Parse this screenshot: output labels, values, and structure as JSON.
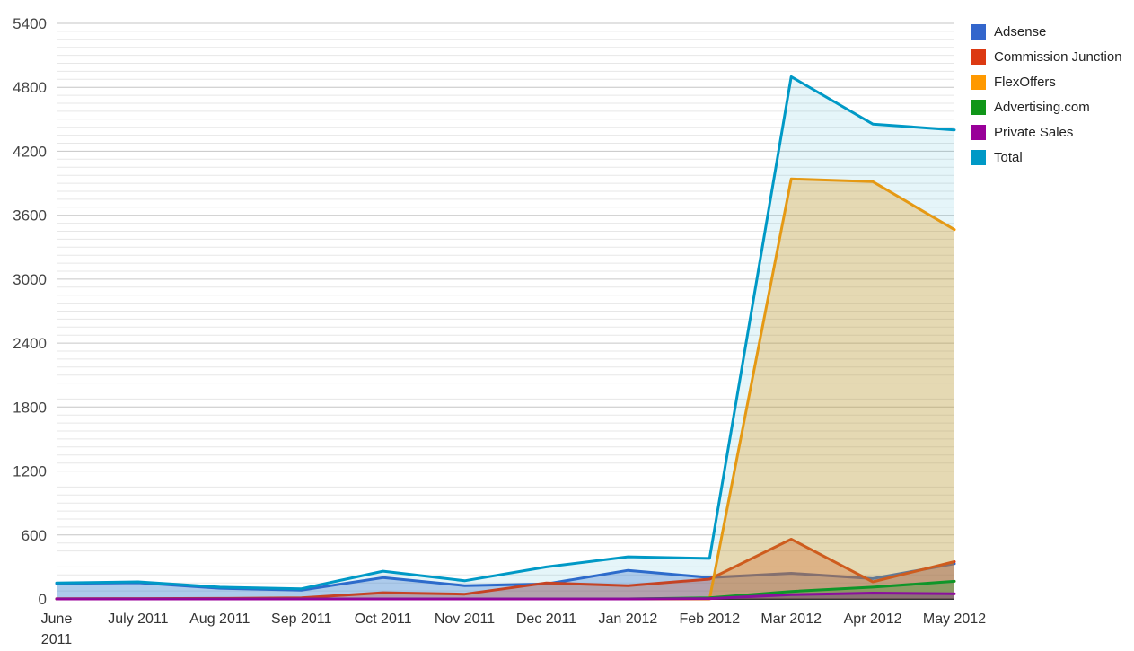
{
  "chart_data": {
    "type": "area",
    "title": "",
    "xlabel": "",
    "ylabel": "",
    "categories": [
      "June 2011",
      "July 2011",
      "Aug 2011",
      "Sep 2011",
      "Oct 2011",
      "Nov 2011",
      "Dec 2011",
      "Jan 2012",
      "Feb 2012",
      "Mar 2012",
      "Apr 2012",
      "May 2012"
    ],
    "x_labels": [
      "June\n2011",
      "July 2011",
      "Aug 2011",
      "Sep 2011",
      "Oct 2011",
      "Nov 2011",
      "Dec 2011",
      "Jan 2012",
      "Feb 2012",
      "Mar 2012",
      "Apr 2012",
      "May 2012"
    ],
    "series": [
      {
        "name": "Adsense",
        "color": "#3366cc",
        "fill_opacity": 0.3,
        "values": [
          145,
          152,
          100,
          82,
          200,
          125,
          140,
          268,
          200,
          240,
          190,
          330
        ]
      },
      {
        "name": "Commission Junction",
        "color": "#dc3912",
        "fill_opacity": 0.3,
        "values": [
          2,
          3,
          5,
          10,
          58,
          45,
          150,
          125,
          185,
          560,
          160,
          350
        ]
      },
      {
        "name": "FlexOffers",
        "color": "#ff9900",
        "fill_opacity": 0.3,
        "values": [
          0,
          0,
          0,
          0,
          0,
          0,
          0,
          0,
          0,
          3940,
          3915,
          3465
        ]
      },
      {
        "name": "Advertising.com",
        "color": "#109618",
        "fill_opacity": 0.3,
        "values": [
          0,
          0,
          0,
          0,
          0,
          0,
          0,
          0,
          10,
          70,
          110,
          165
        ]
      },
      {
        "name": "Private Sales",
        "color": "#990099",
        "fill_opacity": 0.3,
        "values": [
          0,
          0,
          0,
          0,
          0,
          0,
          0,
          0,
          3,
          40,
          55,
          48
        ]
      },
      {
        "name": "Total",
        "color": "#0099c6",
        "fill_opacity": 0.1,
        "values": [
          150,
          160,
          110,
          95,
          260,
          170,
          300,
          395,
          380,
          4900,
          4455,
          4400
        ]
      }
    ],
    "ylim": [
      0,
      5400
    ],
    "y_ticks": [
      0,
      600,
      1200,
      1800,
      2400,
      3000,
      3600,
      4200,
      4800,
      5400
    ],
    "y_minor_step": 75,
    "grid": {
      "major_color": "#c6c6c6",
      "minor_color": "#e7e7e7",
      "baseline_color": "#333333",
      "grid_on": true
    },
    "legend": {
      "position": "top-right",
      "items": [
        "Adsense",
        "Commission Junction",
        "FlexOffers",
        "Advertising.com",
        "Private Sales",
        "Total"
      ]
    }
  },
  "colors": {
    "background": "#ffffff",
    "y_tick_label": "#444444",
    "x_tick_label": "#333333",
    "legend_text": "#222222"
  }
}
